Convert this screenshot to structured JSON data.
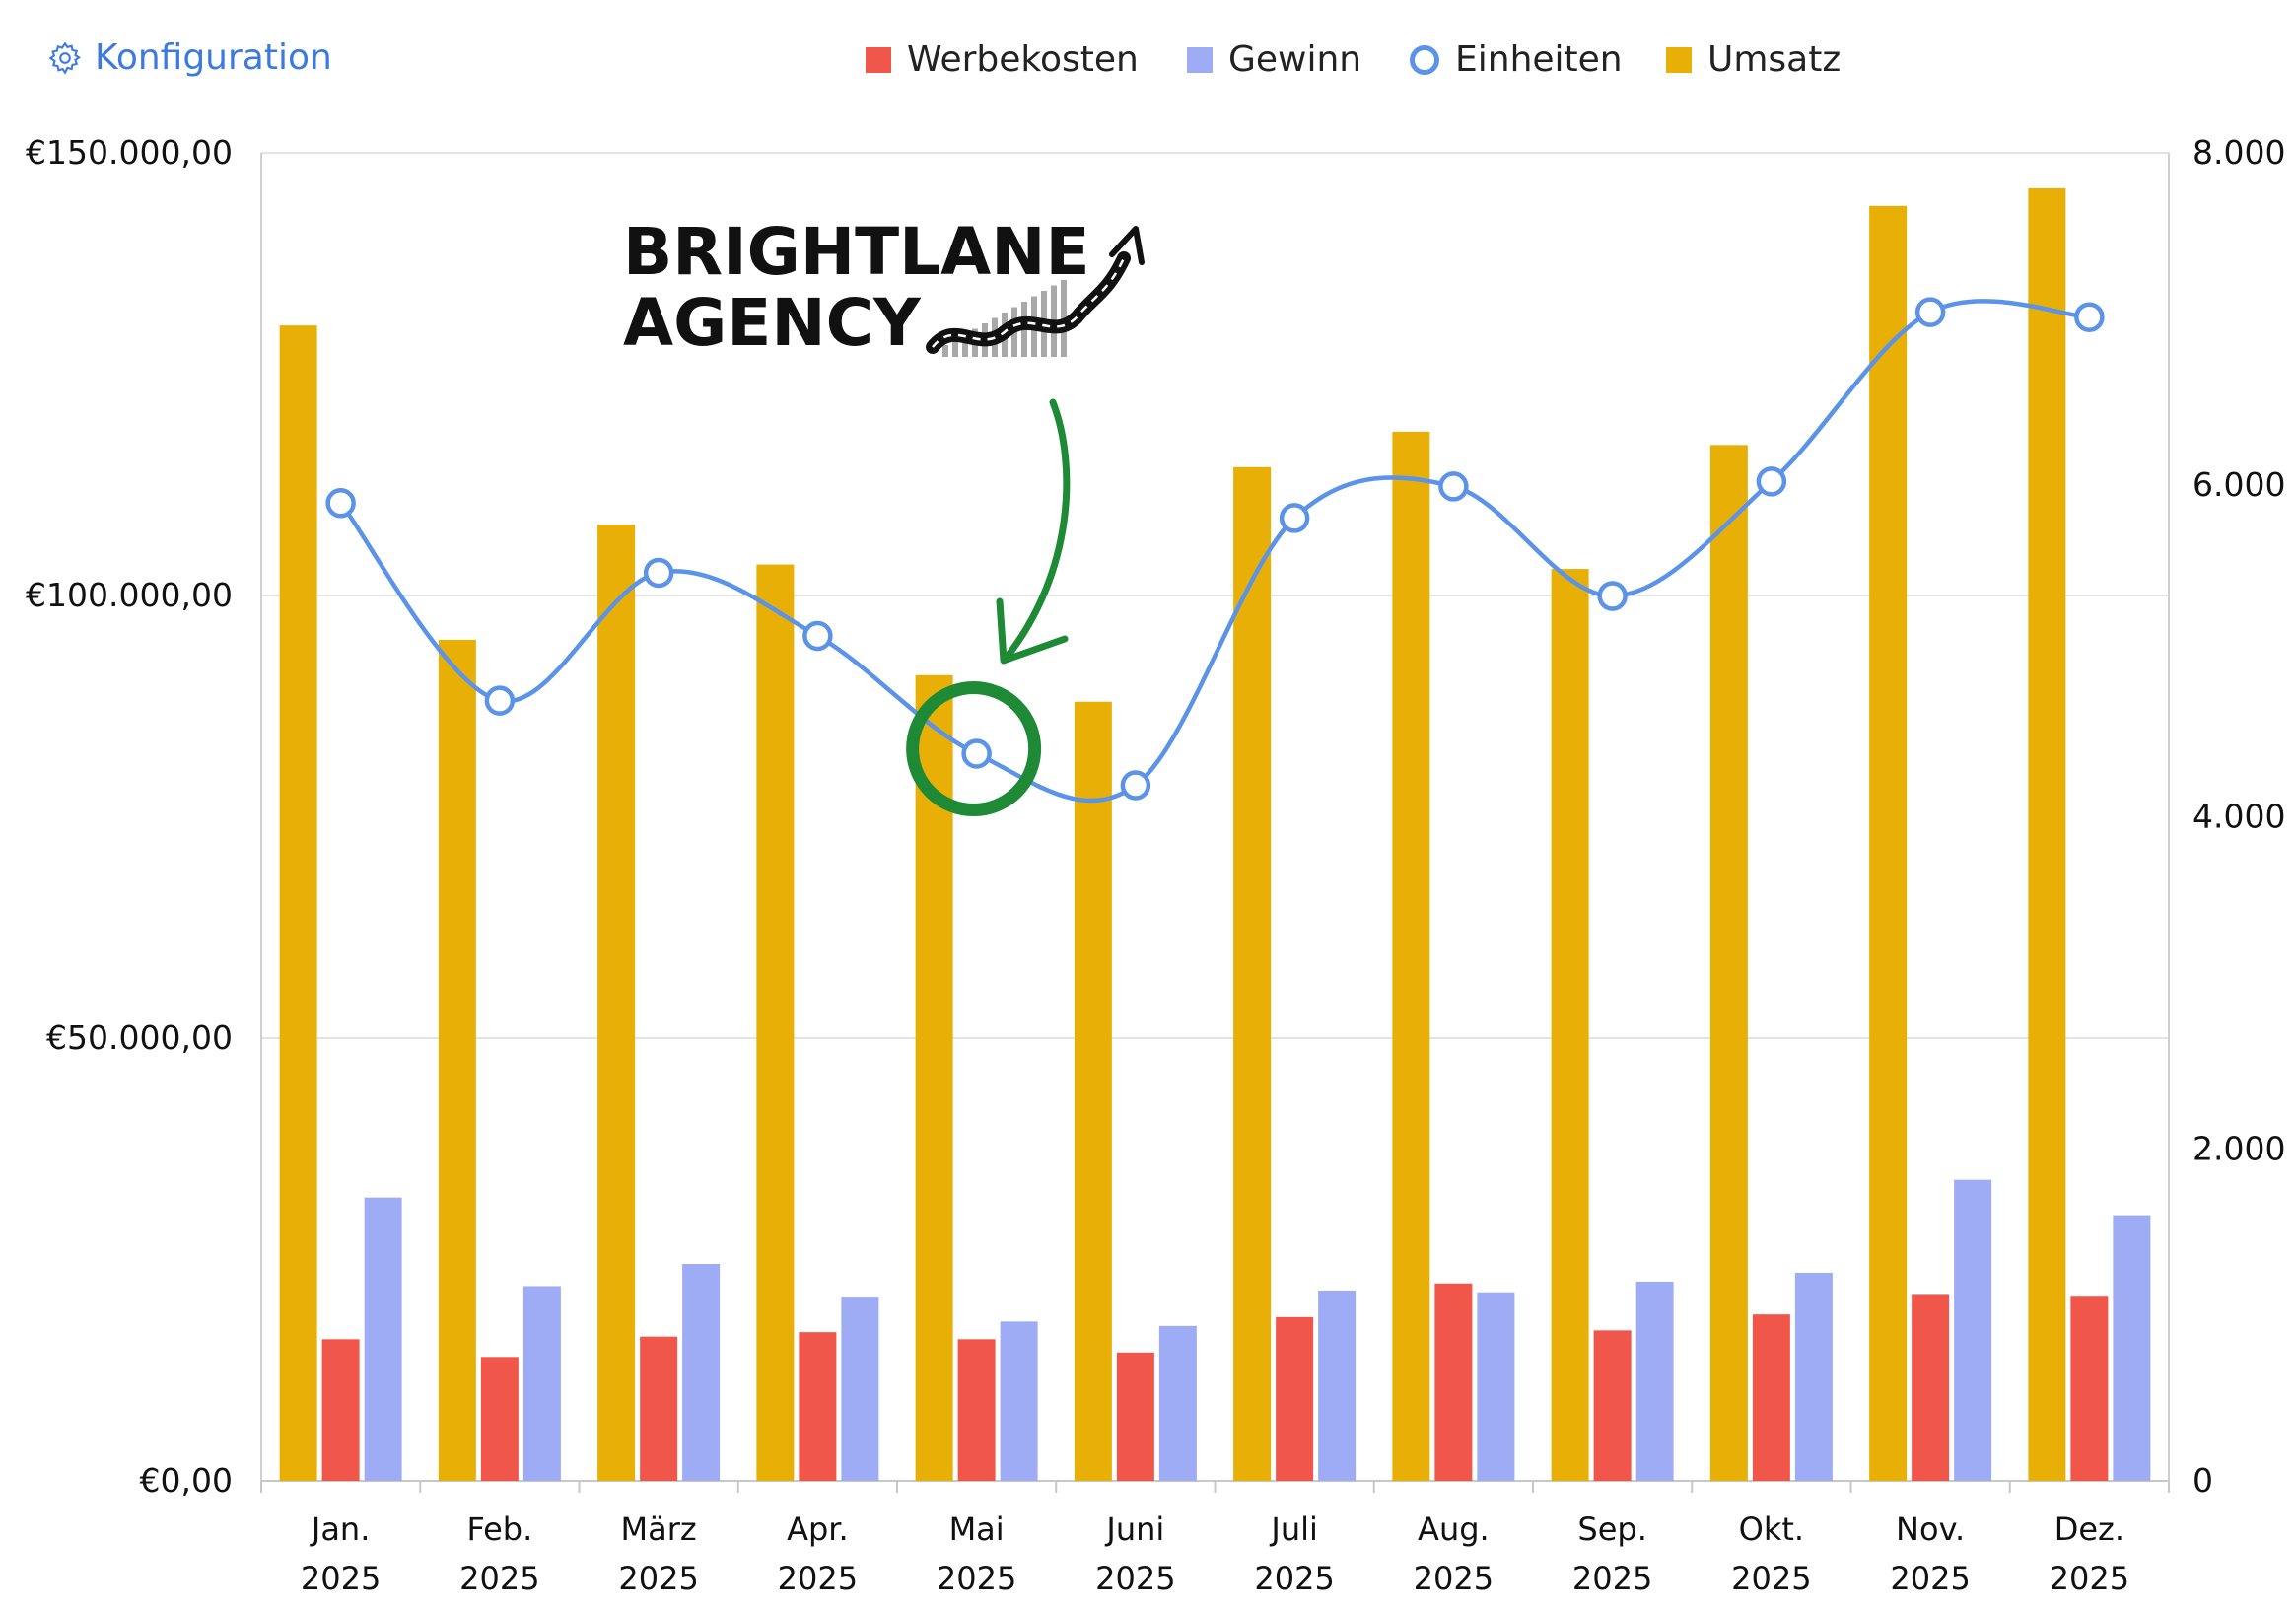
{
  "header": {
    "config_label": "Konfiguration",
    "config_icon": "gear-icon"
  },
  "legend": [
    {
      "label": "Werbekosten",
      "color": "#f0574a",
      "marker": "square"
    },
    {
      "label": "Gewinn",
      "color": "#9dacf5",
      "marker": "square"
    },
    {
      "label": "Einheiten",
      "color": "#5b93e8",
      "marker": "circle"
    },
    {
      "label": "Umsatz",
      "color": "#e8b007",
      "marker": "square"
    }
  ],
  "annotation": {
    "logo_line1": "BRIGHTLANE",
    "logo_line2": "AGENCY",
    "highlight_category": "Mai",
    "color": "#1f8a35"
  },
  "chart_data": {
    "type": "bar",
    "categories": [
      "Jan.",
      "Feb.",
      "März",
      "Apr.",
      "Mai",
      "Juni",
      "Juli",
      "Aug.",
      "Sep.",
      "Okt.",
      "Nov.",
      "Dez."
    ],
    "category_year": "2025",
    "left_axis": {
      "ylim": [
        0,
        150000
      ],
      "ticks": [
        0,
        50000,
        100000,
        150000
      ],
      "tick_labels": [
        "€0,00",
        "€50.000,00",
        "€100.000,00",
        "€150.000,00"
      ]
    },
    "right_axis": {
      "ylim": [
        0,
        8000
      ],
      "ticks": [
        0,
        2000,
        4000,
        6000,
        8000
      ],
      "tick_labels": [
        "0",
        "2.000",
        "4.000",
        "6.000",
        "8.000"
      ]
    },
    "series": [
      {
        "name": "Umsatz",
        "type": "bar",
        "axis": "left",
        "color": "#e8b007",
        "values": [
          130500,
          95000,
          108000,
          103500,
          91000,
          88000,
          114500,
          118500,
          103000,
          117000,
          144000,
          146000
        ]
      },
      {
        "name": "Werbekosten",
        "type": "bar",
        "axis": "left",
        "color": "#f0574a",
        "values": [
          16000,
          14000,
          16300,
          16800,
          16000,
          14500,
          18500,
          22300,
          17000,
          18800,
          21000,
          20800
        ]
      },
      {
        "name": "Gewinn",
        "type": "bar",
        "axis": "left",
        "color": "#9dacf5",
        "values": [
          32000,
          22000,
          24500,
          20700,
          18000,
          17500,
          21500,
          21300,
          22500,
          23500,
          34000,
          30000
        ]
      },
      {
        "name": "Einheiten",
        "type": "line",
        "axis": "right",
        "color": "#5b93e8",
        "values": [
          5890,
          4700,
          5470,
          5090,
          4380,
          4190,
          5800,
          5990,
          5330,
          6020,
          7040,
          7010
        ]
      }
    ],
    "grid": true
  }
}
